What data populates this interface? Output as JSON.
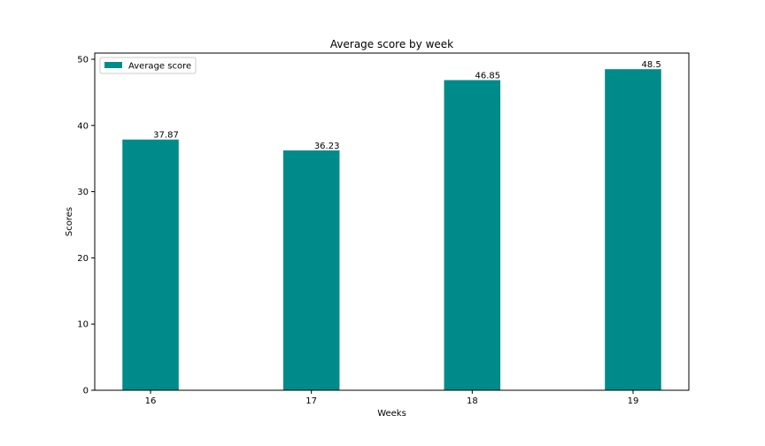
{
  "chart_data": {
    "type": "bar",
    "title": "Average score by week",
    "x_label": "Weeks",
    "y_label": "Scores",
    "categories": [
      "16",
      "17",
      "18",
      "19"
    ],
    "series": [
      {
        "name": "Average score",
        "color": "#008b8b",
        "values": [
          37.87,
          36.23,
          46.85,
          48.5
        ]
      }
    ],
    "ylim": [
      0,
      50.93
    ],
    "yticks": [
      0,
      10,
      20,
      30,
      40,
      50
    ],
    "grid": false,
    "legend": "upper-left"
  }
}
